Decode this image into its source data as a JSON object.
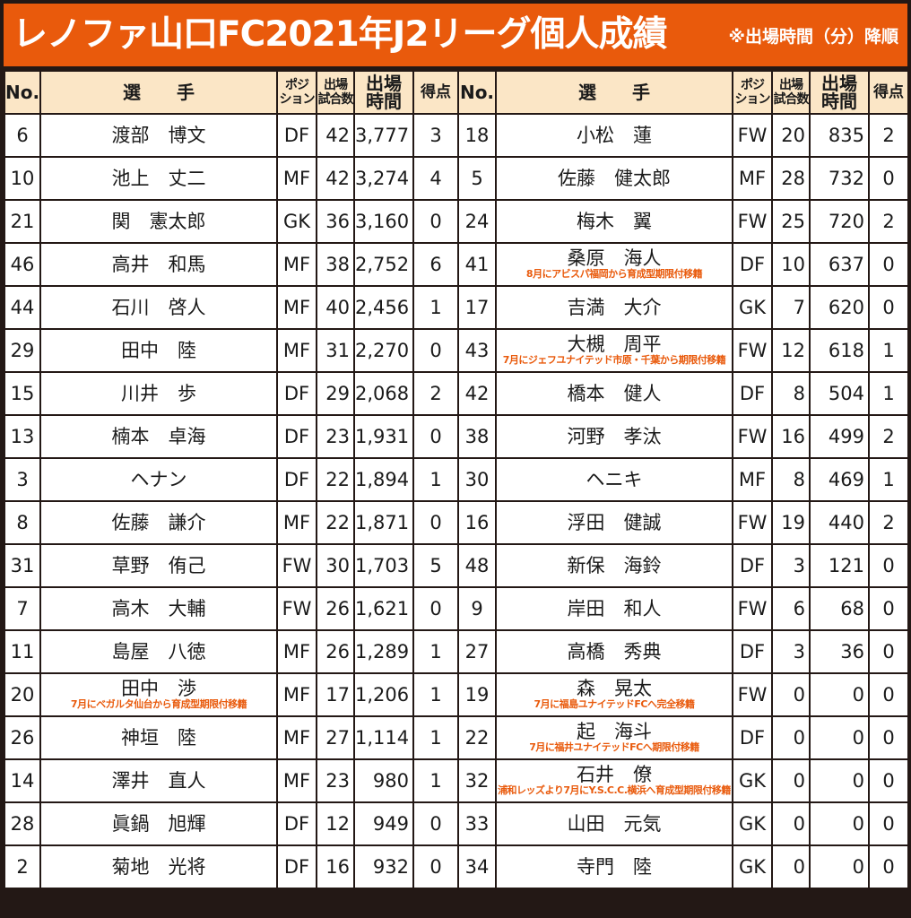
{
  "title": "レノファ山口FC2021年J2リーグ個人成績",
  "note": "※出場時間（分）降順",
  "headers": {
    "no": "No.",
    "player": "選　　手",
    "position": [
      "ポジ",
      "ション"
    ],
    "games": [
      "出場",
      "試合数"
    ],
    "minutes": [
      "出場",
      "時間"
    ],
    "goals": "得点"
  },
  "left_rows": [
    {
      "no": "6",
      "name": "渡部　博文",
      "transfer": "",
      "pos": "DF",
      "games": "42",
      "minutes": "3,777",
      "goals": "3"
    },
    {
      "no": "10",
      "name": "池上　丈二",
      "transfer": "",
      "pos": "MF",
      "games": "42",
      "minutes": "3,274",
      "goals": "4"
    },
    {
      "no": "21",
      "name": "関　憲太郎",
      "transfer": "",
      "pos": "GK",
      "games": "36",
      "minutes": "3,160",
      "goals": "0"
    },
    {
      "no": "46",
      "name": "高井　和馬",
      "transfer": "",
      "pos": "MF",
      "games": "38",
      "minutes": "2,752",
      "goals": "6"
    },
    {
      "no": "44",
      "name": "石川　啓人",
      "transfer": "",
      "pos": "MF",
      "games": "40",
      "minutes": "2,456",
      "goals": "1"
    },
    {
      "no": "29",
      "name": "田中　陸",
      "transfer": "",
      "pos": "MF",
      "games": "31",
      "minutes": "2,270",
      "goals": "0"
    },
    {
      "no": "15",
      "name": "川井　歩",
      "transfer": "",
      "pos": "DF",
      "games": "29",
      "minutes": "2,068",
      "goals": "2"
    },
    {
      "no": "13",
      "name": "楠本　卓海",
      "transfer": "",
      "pos": "DF",
      "games": "23",
      "minutes": "1,931",
      "goals": "0"
    },
    {
      "no": "3",
      "name": "ヘナン",
      "transfer": "",
      "pos": "DF",
      "games": "22",
      "minutes": "1,894",
      "goals": "1"
    },
    {
      "no": "8",
      "name": "佐藤　謙介",
      "transfer": "",
      "pos": "MF",
      "games": "22",
      "minutes": "1,871",
      "goals": "0"
    },
    {
      "no": "31",
      "name": "草野　侑己",
      "transfer": "",
      "pos": "FW",
      "games": "30",
      "minutes": "1,703",
      "goals": "5"
    },
    {
      "no": "7",
      "name": "高木　大輔",
      "transfer": "",
      "pos": "FW",
      "games": "26",
      "minutes": "1,621",
      "goals": "0"
    },
    {
      "no": "11",
      "name": "島屋　八徳",
      "transfer": "",
      "pos": "MF",
      "games": "26",
      "minutes": "1,289",
      "goals": "1"
    },
    {
      "no": "20",
      "name": "田中　渉",
      "transfer": "7月にベガルタ仙台から育成型期限付移籍",
      "pos": "MF",
      "games": "17",
      "minutes": "1,206",
      "goals": "1"
    },
    {
      "no": "26",
      "name": "神垣　陸",
      "transfer": "",
      "pos": "MF",
      "games": "27",
      "minutes": "1,114",
      "goals": "1"
    },
    {
      "no": "14",
      "name": "澤井　直人",
      "transfer": "",
      "pos": "MF",
      "games": "23",
      "minutes": "980",
      "goals": "1"
    },
    {
      "no": "28",
      "name": "眞鍋　旭輝",
      "transfer": "",
      "pos": "DF",
      "games": "12",
      "minutes": "949",
      "goals": "0"
    },
    {
      "no": "2",
      "name": "菊地　光将",
      "transfer": "",
      "pos": "DF",
      "games": "16",
      "minutes": "932",
      "goals": "0"
    }
  ],
  "right_rows": [
    {
      "no": "18",
      "name": "小松　蓮",
      "transfer": "",
      "pos": "FW",
      "games": "20",
      "minutes": "835",
      "goals": "2"
    },
    {
      "no": "5",
      "name": "佐藤　健太郎",
      "transfer": "",
      "pos": "MF",
      "games": "28",
      "minutes": "732",
      "goals": "0"
    },
    {
      "no": "24",
      "name": "梅木　翼",
      "transfer": "",
      "pos": "FW",
      "games": "25",
      "minutes": "720",
      "goals": "2"
    },
    {
      "no": "41",
      "name": "桑原　海人",
      "transfer": "8月にアビスパ福岡から育成型期限付移籍",
      "pos": "DF",
      "games": "10",
      "minutes": "637",
      "goals": "0"
    },
    {
      "no": "17",
      "name": "吉満　大介",
      "transfer": "",
      "pos": "GK",
      "games": "7",
      "minutes": "620",
      "goals": "0"
    },
    {
      "no": "43",
      "name": "大槻　周平",
      "transfer": "7月にジェフユナイテッド市原・千葉から期限付移籍",
      "pos": "FW",
      "games": "12",
      "minutes": "618",
      "goals": "1"
    },
    {
      "no": "42",
      "name": "橋本　健人",
      "transfer": "",
      "pos": "DF",
      "games": "8",
      "minutes": "504",
      "goals": "1"
    },
    {
      "no": "38",
      "name": "河野　孝汰",
      "transfer": "",
      "pos": "FW",
      "games": "16",
      "minutes": "499",
      "goals": "2"
    },
    {
      "no": "30",
      "name": "ヘニキ",
      "transfer": "",
      "pos": "MF",
      "games": "8",
      "minutes": "469",
      "goals": "1"
    },
    {
      "no": "16",
      "name": "浮田　健誠",
      "transfer": "",
      "pos": "FW",
      "games": "19",
      "minutes": "440",
      "goals": "2"
    },
    {
      "no": "48",
      "name": "新保　海鈴",
      "transfer": "",
      "pos": "DF",
      "games": "3",
      "minutes": "121",
      "goals": "0"
    },
    {
      "no": "9",
      "name": "岸田　和人",
      "transfer": "",
      "pos": "FW",
      "games": "6",
      "minutes": "68",
      "goals": "0"
    },
    {
      "no": "27",
      "name": "高橋　秀典",
      "transfer": "",
      "pos": "DF",
      "games": "3",
      "minutes": "36",
      "goals": "0"
    },
    {
      "no": "19",
      "name": "森　晃太",
      "transfer": "7月に福島ユナイテッドFCへ完全移籍",
      "pos": "FW",
      "games": "0",
      "minutes": "0",
      "goals": "0"
    },
    {
      "no": "22",
      "name": "起　海斗",
      "transfer": "7月に福井ユナイテッドFCへ期限付移籍",
      "pos": "DF",
      "games": "0",
      "minutes": "0",
      "goals": "0"
    },
    {
      "no": "32",
      "name": "石井　僚",
      "transfer": "浦和レッズより7月にY.S.C.C.横浜へ育成型期限付移籍",
      "pos": "GK",
      "games": "0",
      "minutes": "0",
      "goals": "0"
    },
    {
      "no": "33",
      "name": "山田　元気",
      "transfer": "",
      "pos": "GK",
      "games": "0",
      "minutes": "0",
      "goals": "0"
    },
    {
      "no": "34",
      "name": "寺門　陸",
      "transfer": "",
      "pos": "GK",
      "games": "0",
      "minutes": "0",
      "goals": "0"
    }
  ]
}
